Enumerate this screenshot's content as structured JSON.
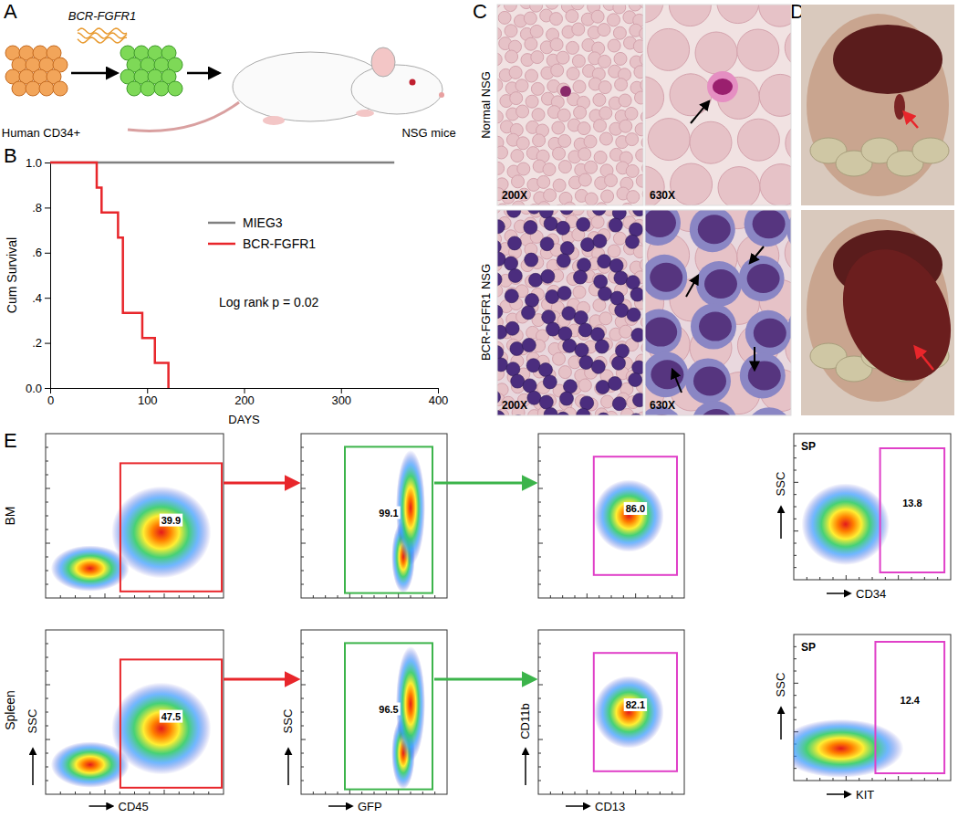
{
  "chart_data": {
    "type": "line",
    "xlabel": "DAYS",
    "ylabel": "Cum Survival",
    "annotation": "Log rank p = 0.02",
    "xlim": [
      0,
      400
    ],
    "xticks": [
      0,
      100,
      200,
      300,
      400
    ],
    "ylim": [
      0,
      1
    ],
    "yticks": [
      {
        "value": 0,
        "label": "0.0"
      },
      {
        "value": 0.2,
        "label": ".2"
      },
      {
        "value": 0.4,
        "label": ".4"
      },
      {
        "value": 0.6,
        "label": ".6"
      },
      {
        "value": 0.8,
        "label": ".8"
      },
      {
        "value": 1,
        "label": "1.0"
      }
    ],
    "legend": "right",
    "series": [
      {
        "name": "MIEG3",
        "color": "#808080",
        "x": [
          0,
          355
        ],
        "values": [
          1,
          1
        ]
      },
      {
        "name": "BCR-FGFR1",
        "color": "#e8262b",
        "x": [
          0,
          48,
          53,
          70,
          75,
          95,
          108,
          122
        ],
        "values": [
          1,
          0.889,
          0.778,
          0.667,
          0.333,
          0.222,
          0.111,
          0
        ]
      }
    ]
  },
  "figure": {
    "panel_labels": [
      "A",
      "B",
      "C",
      "D",
      "E"
    ],
    "a": {
      "gene": "BCR-FGFR1",
      "cells": "Human CD34+",
      "mice": "NSG mice"
    },
    "c": {
      "rows": [
        "Normal NSG",
        "BCR-FGFR1 NSG"
      ],
      "magnifications": [
        "200X",
        "630X"
      ]
    },
    "e": {
      "rows": [
        "BM",
        "Spleen"
      ],
      "x_labels": [
        "CD45",
        "GFP",
        "CD13"
      ],
      "y_labels": [
        "SSC",
        "SSC",
        "CD11b"
      ],
      "gates": [
        [
          "39.9",
          "99.1",
          "86.0"
        ],
        [
          "47.5",
          "96.5",
          "82.1"
        ]
      ],
      "sp": [
        {
          "tissue": "SP",
          "x_label": "CD34",
          "y_label": "SSC",
          "gate": "13.8"
        },
        {
          "tissue": "SP",
          "x_label": "KIT",
          "y_label": "SSC",
          "gate": "12.4"
        }
      ]
    }
  }
}
